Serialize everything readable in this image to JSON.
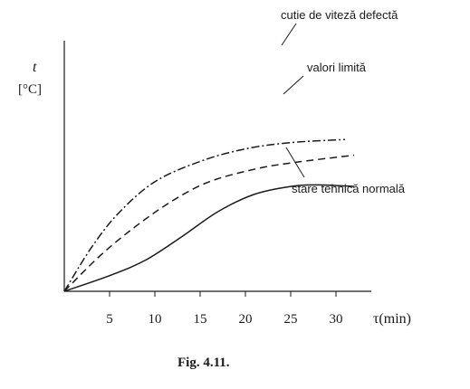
{
  "chart_data": {
    "type": "line",
    "xlabel": "τ(min)",
    "ylabel_symbol": "t",
    "ylabel_unit": "[°C]",
    "x_ticks": [
      5,
      10,
      15,
      20,
      25,
      30
    ],
    "xlim": [
      0,
      35
    ],
    "ylim": [
      0,
      100
    ],
    "grid": false,
    "series": [
      {
        "name": "cutie de viteză defectă",
        "style": "dash-dot",
        "x": [
          0,
          3,
          6,
          10,
          15,
          20,
          25,
          31
        ],
        "y": [
          0,
          28,
          50,
          70,
          83,
          91,
          95,
          97
        ]
      },
      {
        "name": "valori limită",
        "style": "dashed",
        "x": [
          0,
          4,
          8,
          12,
          16,
          21,
          25,
          32
        ],
        "y": [
          0,
          23,
          42,
          58,
          70,
          78,
          82,
          87
        ]
      },
      {
        "name": "stare tehnică normală",
        "style": "solid",
        "x": [
          0,
          5,
          9,
          13,
          17,
          21,
          25,
          28,
          32
        ],
        "y": [
          0,
          10,
          20,
          35,
          51,
          62,
          67,
          68,
          67
        ]
      }
    ],
    "caption": "Fig. 4.11."
  }
}
